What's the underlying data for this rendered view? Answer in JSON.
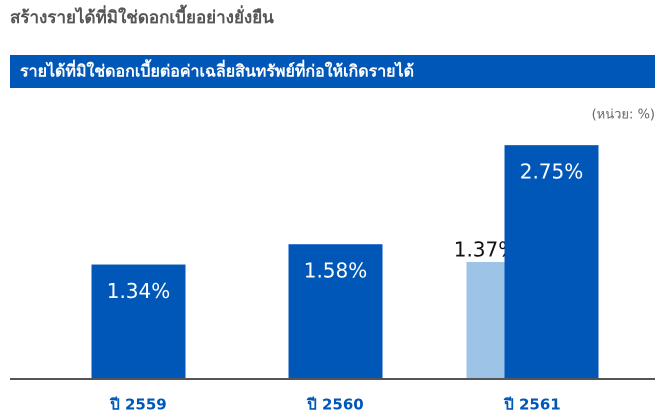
{
  "chart_data": {
    "type": "bar",
    "title": "สร้างรายได้ที่มิใช่ดอกเบี้ยอย่างยั่งยืน",
    "subtitle": "รายได้ที่มิใช่ดอกเบี้ยต่อค่าเฉลี่ยสินทรัพย์ที่ก่อให้เกิดรายได้",
    "unit_note": "(หน่วย: %)",
    "categories": [
      "ปี 2559",
      "ปี 2560",
      "ปี 2561"
    ],
    "series": [
      {
        "color": "#0057b8",
        "values": [
          1.34,
          1.58,
          2.75
        ],
        "value_labels": [
          "1.34%",
          "1.58%",
          "2.75%"
        ]
      },
      {
        "color": "#9dc3e6",
        "values": [
          null,
          null,
          1.37
        ],
        "value_labels": [
          null,
          null,
          "1.37%"
        ]
      }
    ],
    "ylim": [
      0,
      3
    ]
  }
}
